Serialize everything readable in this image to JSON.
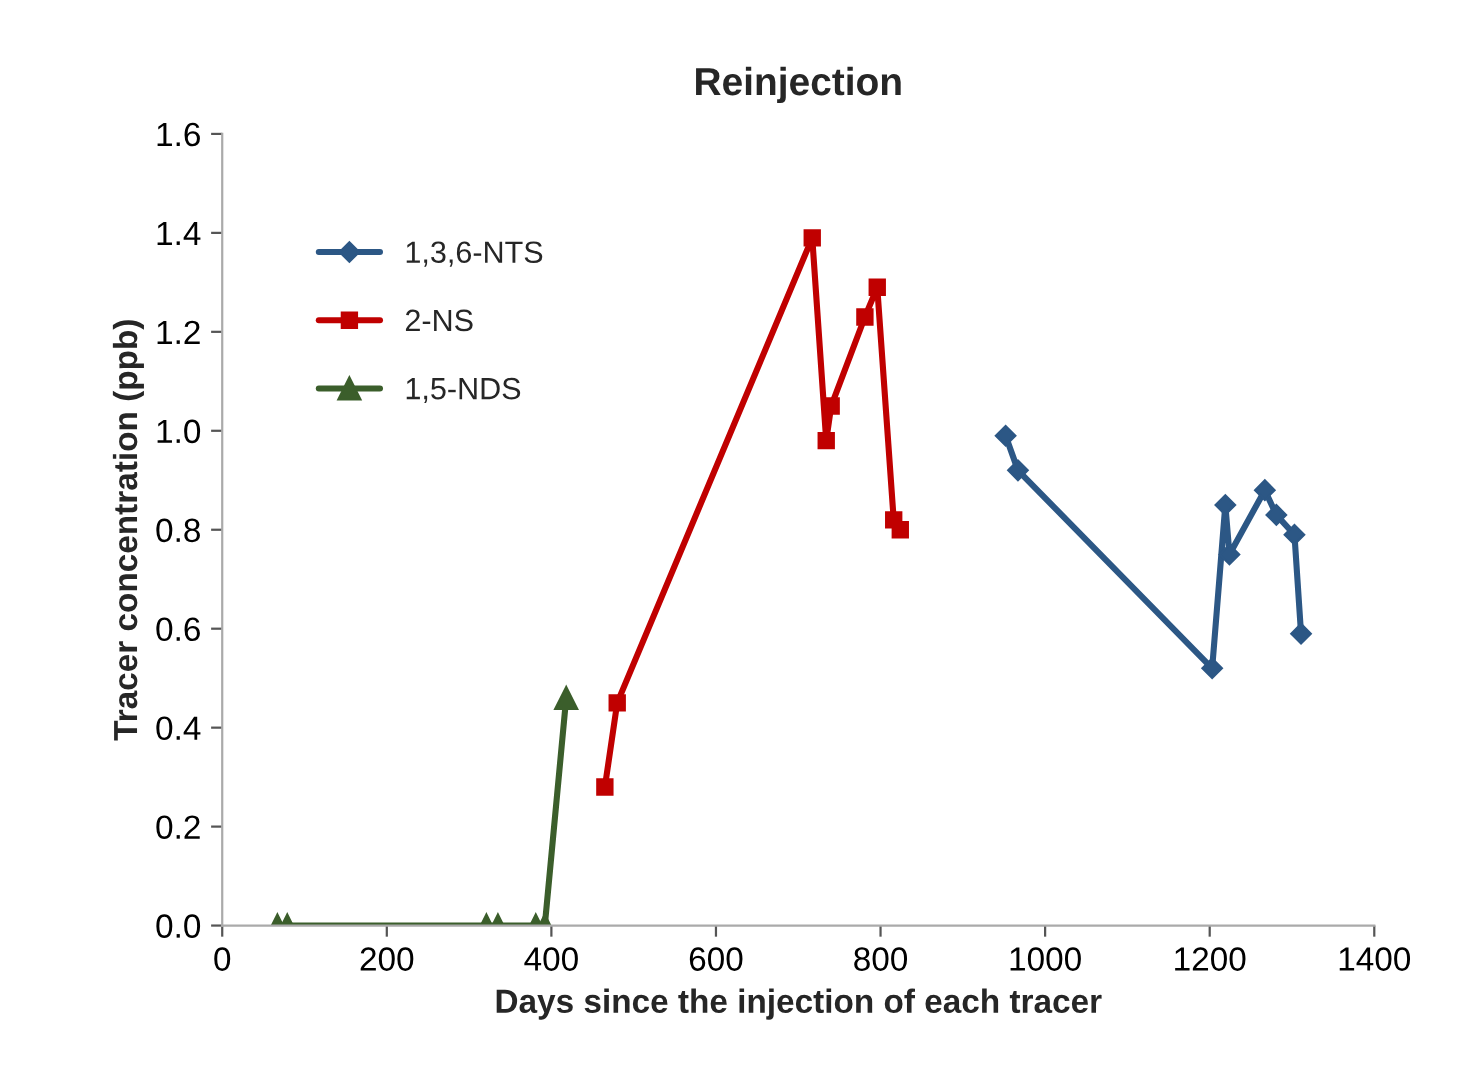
{
  "chart_data": {
    "type": "line",
    "title": "Reinjection",
    "xlabel": "Days since the injection of each tracer",
    "ylabel": "Tracer concentration (ppb)",
    "xlim": [
      0,
      1400
    ],
    "xticks": [
      0,
      200,
      400,
      600,
      800,
      1000,
      1200,
      1400
    ],
    "ylim": [
      0,
      1.6
    ],
    "yticks": [
      {
        "value": 0,
        "label": "0.0"
      },
      {
        "value": 0.2,
        "label": "0.2"
      },
      {
        "value": 0.4,
        "label": "0.4"
      },
      {
        "value": 0.6,
        "label": "0.6"
      },
      {
        "value": 0.8,
        "label": "0.8"
      },
      {
        "value": 1.0,
        "label": "1.0"
      },
      {
        "value": 1.2,
        "label": "1.2"
      },
      {
        "value": 1.4,
        "label": "1.4"
      },
      {
        "value": 1.6,
        "label": "1.6"
      }
    ],
    "grid": false,
    "legend": "top left",
    "line_style": "solid",
    "series": [
      {
        "name": "1,3,6-NTS",
        "color": "#2c5785",
        "marker": "diamond",
        "x": [
          952,
          967,
          1203,
          1219,
          1224,
          1267,
          1281,
          1303,
          1311
        ],
        "values": [
          0.99,
          0.92,
          0.52,
          0.85,
          0.75,
          0.88,
          0.83,
          0.79,
          0.59
        ]
      },
      {
        "name": "2-NS",
        "color": "#c00000",
        "marker": "square",
        "x": [
          465,
          480,
          717,
          734,
          740,
          781,
          796,
          816,
          824
        ],
        "values": [
          0.28,
          0.45,
          1.39,
          0.98,
          1.05,
          1.23,
          1.29,
          0.82,
          0.8
        ]
      },
      {
        "name": "1,5-NDS",
        "color": "#3b5e2b",
        "marker": "triangle",
        "x": [
          67,
          79,
          321,
          335,
          381,
          392,
          418
        ],
        "values": [
          0,
          0,
          0,
          0,
          0,
          0,
          0.46
        ]
      }
    ]
  }
}
